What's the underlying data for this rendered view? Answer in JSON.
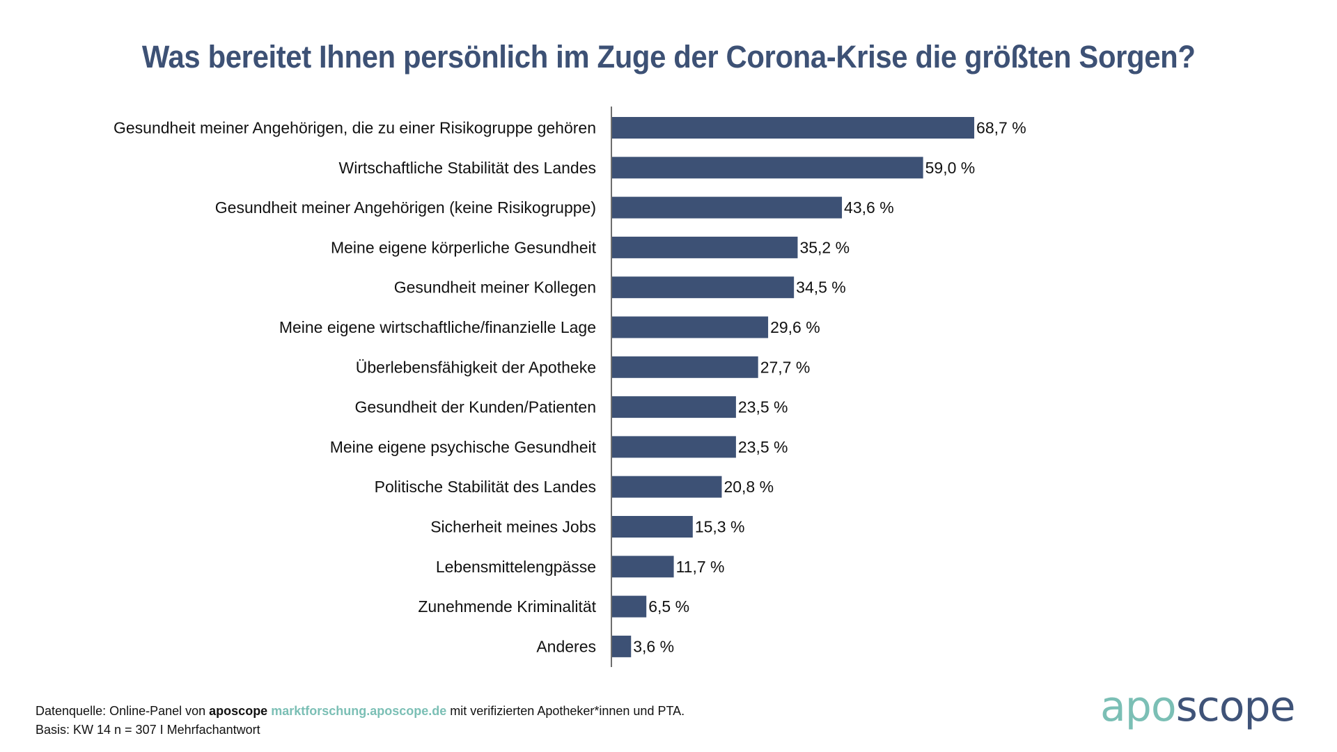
{
  "title": "Was bereitet Ihnen persönlich im Zuge der Corona-Krise die größten Sorgen?",
  "chart_data": {
    "type": "bar",
    "orientation": "horizontal",
    "title": "Was bereitet Ihnen persönlich im Zuge der Corona-Krise die größten Sorgen?",
    "xlabel": "",
    "ylabel": "",
    "unit": "%",
    "xlim": [
      0,
      100
    ],
    "grid": false,
    "legend": null,
    "bar_color": "#3d5175",
    "categories": [
      "Gesundheit meiner Angehörigen, die zu einer Risikogruppe gehören",
      "Wirtschaftliche Stabilität des Landes",
      "Gesundheit meiner Angehörigen (keine Risikogruppe)",
      "Meine eigene körperliche Gesundheit",
      "Gesundheit meiner Kollegen",
      "Meine eigene wirtschaftliche/finanzielle Lage",
      "Überlebensfähigkeit der Apotheke",
      "Gesundheit der Kunden/Patienten",
      "Meine eigene psychische Gesundheit",
      "Politische Stabilität des Landes",
      "Sicherheit meines Jobs",
      "Lebensmittelengpässe",
      "Zunehmende Kriminalität",
      "Anderes"
    ],
    "values": [
      68.7,
      59.0,
      43.6,
      35.2,
      34.5,
      29.6,
      27.7,
      23.5,
      23.5,
      20.8,
      15.3,
      11.7,
      6.5,
      3.6
    ],
    "value_labels": [
      "68,7 %",
      "59,0 %",
      "43,6 %",
      "35,2 %",
      "34,5 %",
      "29,6 %",
      "27,7 %",
      "23,5 %",
      "23,5 %",
      "20,8 %",
      "15,3 %",
      "11,7 %",
      "6,5 %",
      "3,6 %"
    ]
  },
  "footer": {
    "source_prefix": "Datenquelle: Online-Panel von ",
    "source_brand": "aposcope",
    "source_link": "marktforschung.aposcope.de",
    "source_suffix": " mit verifizierten Apotheker*innen und PTA.",
    "basis": "Basis: KW 14 n = 307 I Mehrfachantwort"
  },
  "logo": {
    "part1": "apo",
    "part2": "scope",
    "color1": "#7bbfb5",
    "color2": "#3f5378"
  }
}
